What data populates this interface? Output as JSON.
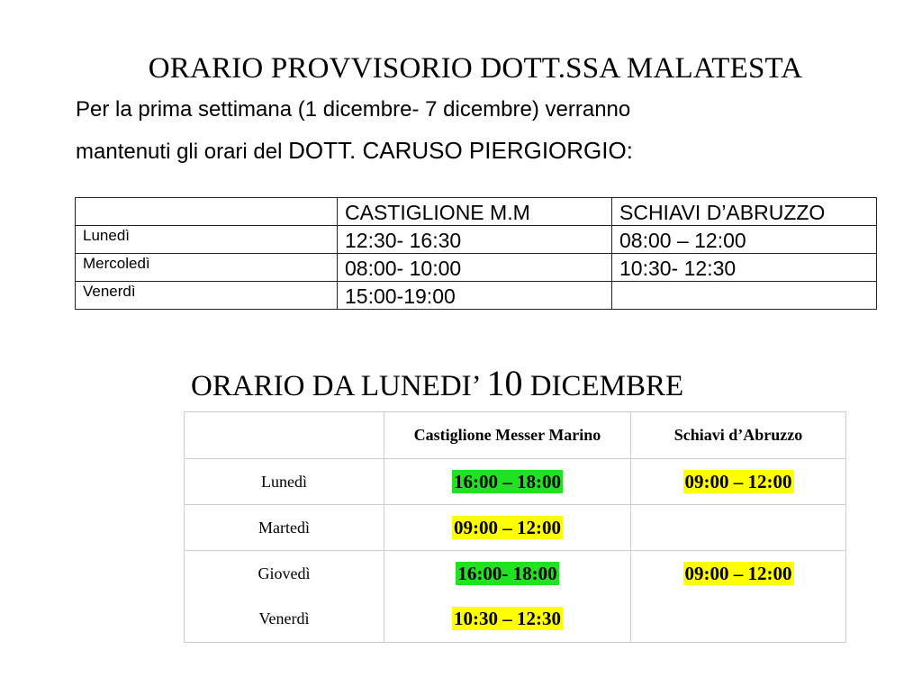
{
  "title1": "ORARIO PROVVISORIO DOTT.SSA MALATESTA",
  "intro": {
    "line1": "Per la prima settimana (1 dicembre- 7 dicembre) verranno",
    "line2_a": "mantenuti gli orari del ",
    "line2_b": "DOTT. CARUSO PIERGIORGIO",
    "line2_c": ":"
  },
  "table1": {
    "headers": [
      "",
      "CASTIGLIONE M.M",
      "SCHIAVI D’ABRUZZO"
    ],
    "rows": [
      [
        "Lunedì",
        "12:30- 16:30",
        "08:00 – 12:00"
      ],
      [
        "Mercoledì",
        "08:00- 10:00",
        "10:30- 12:30"
      ],
      [
        "Venerdì",
        "15:00-19:00",
        ""
      ]
    ]
  },
  "title2": {
    "a": "ORARIO DA LUNEDI’ ",
    "num": "10",
    "b": " DICEMBRE"
  },
  "table2": {
    "headers": [
      "",
      "Castiglione Messer Marino",
      "Schiavi d’Abruzzo"
    ],
    "rows": [
      [
        "Lunedì",
        "16:00 – 18:00",
        "09:00 – 12:00"
      ],
      [
        "Martedì",
        "09:00 – 12:00",
        ""
      ],
      [
        "Giovedì",
        "16:00- 18:00",
        "09:00 – 12:00"
      ],
      [
        "Venerdì",
        "10:30 – 12:30",
        ""
      ]
    ],
    "highlight_colors": {
      "green": "#22e022",
      "yellow": "#ffff00"
    }
  }
}
